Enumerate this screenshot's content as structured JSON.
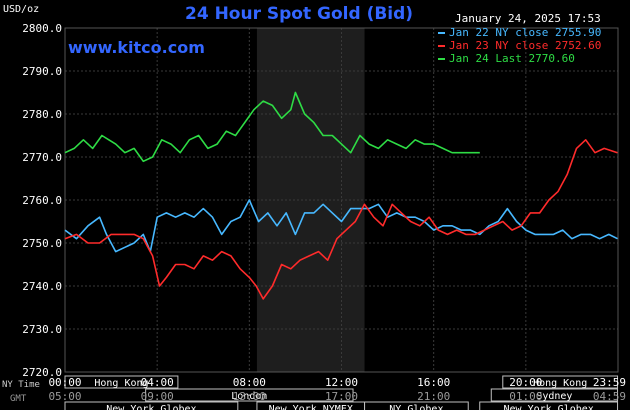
{
  "header": {
    "title": "24 Hour Spot Gold (Bid)",
    "brand": "www.kitco.com",
    "datetime": "January 24, 2025 17:53",
    "unit": "USD/oz"
  },
  "colors": {
    "background": "#000000",
    "grid": "#3a3a3a",
    "nymex_shade": "#1e1e1e",
    "title": "#3366ff",
    "series_jan22": "#47b8ff",
    "series_jan23": "#ff2b2b",
    "series_jan24": "#2edc45",
    "session_box": "#bfbfbf"
  },
  "legend": [
    {
      "label": "Jan 22 NY close 2755.90",
      "color": "#47b8ff"
    },
    {
      "label": "Jan 23 NY close 2752.60",
      "color": "#ff2b2b"
    },
    {
      "label": "Jan 24 Last 2770.60",
      "color": "#2edc45"
    }
  ],
  "sessions": [
    {
      "label": "Hong Kong",
      "row": 0,
      "start": 0,
      "end": 4.9
    },
    {
      "label": "Hong Kong",
      "row": 0,
      "start": 19,
      "end": 23.98
    },
    {
      "label": "London",
      "row": 1,
      "start": 3.5,
      "end": 12.5
    },
    {
      "label": "Sydney",
      "row": 1,
      "start": 18.5,
      "end": 23.98
    },
    {
      "label": "New York Globex",
      "row": 2,
      "start": 0,
      "end": 7.5
    },
    {
      "label": "New York NYMEX",
      "row": 2,
      "start": 8.33,
      "end": 13
    },
    {
      "label": "NY Globex",
      "row": 2,
      "start": 13,
      "end": 17.5
    },
    {
      "label": "New York Globex",
      "row": 2,
      "start": 18,
      "end": 23.98
    }
  ],
  "time_labels": {
    "ny_label": "NY Time",
    "gmt_label": "GMT",
    "ny": [
      "00:00",
      "04:00",
      "08:00",
      "12:00",
      "16:00",
      "20:00",
      "23:59"
    ],
    "gmt": [
      "05:00",
      "09:00",
      "13:00",
      "17:00",
      "21:00",
      "01:00",
      "04:59"
    ]
  },
  "chart_data": {
    "type": "line",
    "title": "24 Hour Spot Gold (Bid)",
    "ylabel": "USD/oz",
    "xlim": [
      0,
      24
    ],
    "ylim": [
      2720,
      2800
    ],
    "y_ticks": [
      "2720.0",
      "2730.0",
      "2740.0",
      "2750.0",
      "2760.0",
      "2770.0",
      "2780.0",
      "2790.0",
      "2800.0"
    ],
    "shaded_hours": [
      8.33,
      13
    ],
    "grid": true,
    "legend_position": "top-right",
    "series": [
      {
        "name": "Jan 22 NY close 2755.90",
        "color": "#47b8ff",
        "x": [
          0,
          0.5,
          1.0,
          1.5,
          1.8,
          2.2,
          2.6,
          3.0,
          3.4,
          3.7,
          4.0,
          4.4,
          4.8,
          5.2,
          5.6,
          6.0,
          6.4,
          6.8,
          7.2,
          7.6,
          8.0,
          8.4,
          8.8,
          9.2,
          9.6,
          10.0,
          10.4,
          10.8,
          11.2,
          11.6,
          12.0,
          12.4,
          12.8,
          13.2,
          13.6,
          14.0,
          14.4,
          14.8,
          15.2,
          15.6,
          16.0,
          16.4,
          16.8,
          17.2,
          17.6,
          18.0,
          18.4,
          18.8,
          19.2,
          19.6,
          20.0,
          20.4,
          20.8,
          21.2,
          21.6,
          22.0,
          22.4,
          22.8,
          23.2,
          23.6,
          23.98
        ],
        "y": [
          2753,
          2751,
          2754,
          2756,
          2752,
          2748,
          2749,
          2750,
          2752,
          2748,
          2756,
          2757,
          2756,
          2757,
          2756,
          2758,
          2756,
          2752,
          2755,
          2756,
          2760,
          2755,
          2757,
          2754,
          2757,
          2752,
          2757,
          2757,
          2759,
          2757,
          2755,
          2758,
          2758,
          2758,
          2759,
          2756,
          2757,
          2756,
          2756,
          2755,
          2753,
          2754,
          2754,
          2753,
          2753,
          2752,
          2754,
          2755,
          2758,
          2755,
          2753,
          2752,
          2752,
          2752,
          2753,
          2751,
          2752,
          2752,
          2751,
          2752,
          2751
        ]
      },
      {
        "name": "Jan 23 NY close 2752.60",
        "color": "#ff2b2b",
        "x": [
          0,
          0.5,
          1.0,
          1.5,
          2.0,
          2.5,
          3.0,
          3.4,
          3.8,
          4.1,
          4.4,
          4.8,
          5.2,
          5.6,
          6.0,
          6.4,
          6.8,
          7.2,
          7.6,
          8.0,
          8.3,
          8.6,
          9.0,
          9.4,
          9.8,
          10.2,
          10.6,
          11.0,
          11.4,
          11.8,
          12.2,
          12.6,
          13.0,
          13.4,
          13.8,
          14.2,
          14.6,
          15.0,
          15.4,
          15.8,
          16.2,
          16.6,
          17.0,
          17.4,
          17.8,
          18.2,
          18.6,
          19.0,
          19.4,
          19.8,
          20.2,
          20.6,
          21.0,
          21.4,
          21.8,
          22.2,
          22.6,
          23.0,
          23.4,
          23.98
        ],
        "y": [
          2751,
          2752,
          2750,
          2750,
          2752,
          2752,
          2752,
          2751,
          2747,
          2740,
          2742,
          2745,
          2745,
          2744,
          2747,
          2746,
          2748,
          2747,
          2744,
          2742,
          2740,
          2737,
          2740,
          2745,
          2744,
          2746,
          2747,
          2748,
          2746,
          2751,
          2753,
          2755,
          2759,
          2756,
          2754,
          2759,
          2757,
          2755,
          2754,
          2756,
          2753,
          2752,
          2753,
          2752,
          2752,
          2753,
          2754,
          2755,
          2753,
          2754,
          2757,
          2757,
          2760,
          2762,
          2766,
          2772,
          2774,
          2771,
          2772,
          2771
        ]
      },
      {
        "name": "Jan 24 Last 2770.60",
        "color": "#2edc45",
        "x": [
          0,
          0.4,
          0.8,
          1.2,
          1.6,
          1.9,
          2.2,
          2.6,
          3.0,
          3.4,
          3.8,
          4.2,
          4.6,
          5.0,
          5.4,
          5.8,
          6.2,
          6.6,
          7.0,
          7.4,
          7.8,
          8.2,
          8.6,
          9.0,
          9.4,
          9.8,
          10.0,
          10.4,
          10.8,
          11.2,
          11.6,
          12.0,
          12.4,
          12.8,
          13.2,
          13.6,
          14.0,
          14.4,
          14.8,
          15.2,
          15.6,
          16.0,
          16.4,
          16.8,
          17.2,
          17.6,
          18.0
        ],
        "y": [
          2771,
          2772,
          2774,
          2772,
          2775,
          2774,
          2773,
          2771,
          2772,
          2769,
          2770,
          2774,
          2773,
          2771,
          2774,
          2775,
          2772,
          2773,
          2776,
          2775,
          2778,
          2781,
          2783,
          2782,
          2779,
          2781,
          2785,
          2780,
          2778,
          2775,
          2775,
          2773,
          2771,
          2775,
          2773,
          2772,
          2774,
          2773,
          2772,
          2774,
          2773,
          2773,
          2772,
          2771,
          2771,
          2771,
          2771
        ]
      }
    ]
  }
}
